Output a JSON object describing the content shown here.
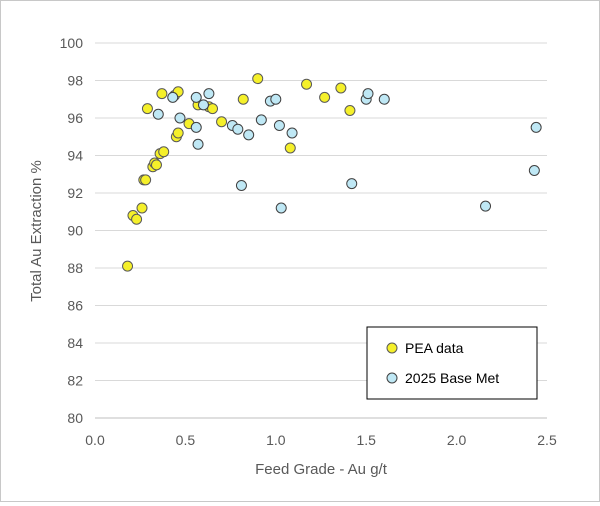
{
  "chart_data": {
    "type": "scatter",
    "title": "",
    "xlabel": "Feed Grade - Au g/t",
    "ylabel": "Total Au Extraction %",
    "xlim": [
      0.0,
      2.5
    ],
    "ylim": [
      80,
      100
    ],
    "x_ticks": [
      "0.0",
      "0.5",
      "1.0",
      "1.5",
      "2.0",
      "2.5"
    ],
    "y_ticks": [
      "80",
      "82",
      "84",
      "86",
      "88",
      "90",
      "92",
      "94",
      "96",
      "98",
      "100"
    ],
    "grid": "horizontal major",
    "legend_position": "bottom-right",
    "series": [
      {
        "name": "PEA data",
        "color": "#f5f02a",
        "points": [
          [
            0.18,
            88.1
          ],
          [
            0.21,
            90.8
          ],
          [
            0.23,
            90.6
          ],
          [
            0.26,
            91.2
          ],
          [
            0.27,
            92.7
          ],
          [
            0.28,
            92.7
          ],
          [
            0.29,
            96.5
          ],
          [
            0.32,
            93.4
          ],
          [
            0.33,
            93.6
          ],
          [
            0.34,
            93.5
          ],
          [
            0.36,
            94.1
          ],
          [
            0.37,
            97.3
          ],
          [
            0.38,
            94.2
          ],
          [
            0.44,
            97.2
          ],
          [
            0.45,
            95.0
          ],
          [
            0.46,
            95.2
          ],
          [
            0.46,
            97.4
          ],
          [
            0.52,
            95.7
          ],
          [
            0.57,
            96.7
          ],
          [
            0.63,
            96.6
          ],
          [
            0.65,
            96.5
          ],
          [
            0.7,
            95.8
          ],
          [
            0.82,
            97.0
          ],
          [
            0.9,
            98.1
          ],
          [
            1.08,
            94.4
          ],
          [
            1.17,
            97.8
          ],
          [
            1.27,
            97.1
          ],
          [
            1.36,
            97.6
          ],
          [
            1.41,
            96.4
          ]
        ]
      },
      {
        "name": "2025 Base Met",
        "color": "#bfe8f5",
        "points": [
          [
            0.35,
            96.2
          ],
          [
            0.43,
            97.1
          ],
          [
            0.47,
            96.0
          ],
          [
            0.56,
            95.5
          ],
          [
            0.56,
            97.1
          ],
          [
            0.57,
            94.6
          ],
          [
            0.6,
            96.7
          ],
          [
            0.63,
            97.3
          ],
          [
            0.76,
            95.6
          ],
          [
            0.79,
            95.4
          ],
          [
            0.81,
            92.4
          ],
          [
            0.85,
            95.1
          ],
          [
            0.92,
            95.9
          ],
          [
            0.97,
            96.9
          ],
          [
            1.0,
            97.0
          ],
          [
            1.02,
            95.6
          ],
          [
            1.03,
            91.2
          ],
          [
            1.09,
            95.2
          ],
          [
            1.42,
            92.5
          ],
          [
            1.5,
            97.0
          ],
          [
            1.51,
            97.3
          ],
          [
            1.6,
            97.0
          ],
          [
            2.16,
            91.3
          ],
          [
            2.43,
            93.2
          ],
          [
            2.44,
            95.5
          ]
        ]
      }
    ]
  }
}
